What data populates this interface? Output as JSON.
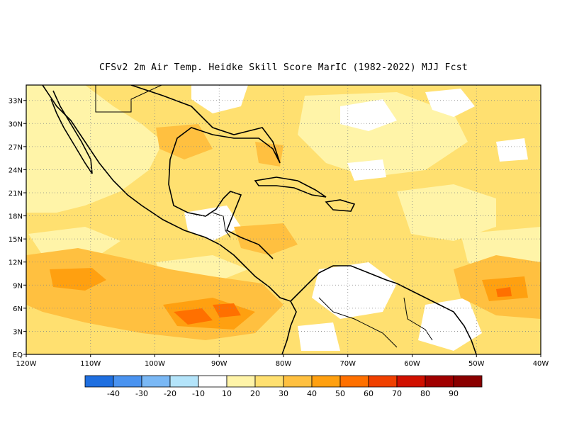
{
  "title": "CFSv2  2m Air Temp. Heidke Skill Score MarIC (1982-2022) MJJ Fcst",
  "map": {
    "lon_range": [
      -120,
      -40
    ],
    "lat_range": [
      0,
      35
    ],
    "lon_labels": [
      "120W",
      "110W",
      "100W",
      "90W",
      "80W",
      "70W",
      "60W",
      "50W",
      "40W"
    ],
    "lat_labels": [
      "EQ",
      "3N",
      "6N",
      "9N",
      "12N",
      "15N",
      "18N",
      "21N",
      "24N",
      "27N",
      "30N",
      "33N"
    ],
    "gridlines": "dotted"
  },
  "colorbar": {
    "labels": [
      "-40",
      "-30",
      "-20",
      "-10",
      "10",
      "20",
      "30",
      "40",
      "50",
      "60",
      "70",
      "80",
      "90"
    ],
    "colors": [
      "#1f6fe0",
      "#4a93f0",
      "#7ab8f5",
      "#b4e4fa",
      "#ffffff",
      "#fff4a8",
      "#ffe070",
      "#ffc040",
      "#ffa010",
      "#ff7000",
      "#f04000",
      "#d01000",
      "#a00000"
    ]
  }
}
